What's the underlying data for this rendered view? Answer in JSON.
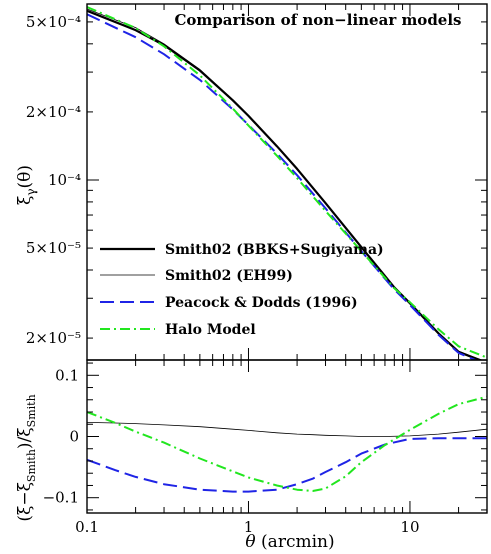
{
  "chart_data": [
    {
      "type": "line",
      "title": "Comparison of non−linear models",
      "ylabel_main": "ξ",
      "ylabel_sub": "γ",
      "ylabel_arg": "(θ)",
      "yscale": "log",
      "xscale": "log",
      "xlim": [
        0.1,
        30
      ],
      "ylim": [
        1.6e-05,
        0.0006
      ],
      "yticks": [
        {
          "value": 0.0005,
          "label": "5×10⁻⁴"
        },
        {
          "value": 0.0002,
          "label": "2×10⁻⁴"
        },
        {
          "value": 0.0001,
          "label": "10⁻⁴"
        },
        {
          "value": 5e-05,
          "label": "5×10⁻⁵"
        },
        {
          "value": 2e-05,
          "label": "2×10⁻⁵"
        }
      ],
      "legend_position": "bottom-left",
      "x": [
        0.1,
        0.2,
        0.3,
        0.5,
        0.8,
        1,
        1.5,
        2,
        3,
        5,
        8,
        10,
        15,
        20,
        30
      ],
      "series": [
        {
          "name": "Smith02 (BBKS+Sugiyama)",
          "color": "#000000",
          "style": "solid-thick",
          "values": [
            0.00056,
            0.00046,
            0.000395,
            0.000305,
            0.000225,
            0.000192,
            0.000141,
            0.000112,
            7.9e-05,
            5.05e-05,
            3.35e-05,
            2.85e-05,
            2.1e-05,
            1.74e-05,
            1.55e-05
          ]
        },
        {
          "name": "Smith02 (EH99)",
          "color": "#000000",
          "style": "solid-thin",
          "values": [
            0.00057,
            0.000472,
            0.0004,
            0.000308,
            0.000226,
            0.000192,
            0.000141,
            0.000112,
            7.9e-05,
            5.05e-05,
            3.35e-05,
            2.85e-05,
            2.11e-05,
            1.75e-05,
            1.57e-05
          ]
        },
        {
          "name": "Peacock & Dodds (1996)",
          "color": "#1f24e6",
          "style": "dashed",
          "values": [
            0.00054,
            0.000428,
            0.00036,
            0.000277,
            0.000205,
            0.000175,
            0.000131,
            0.000105,
            7.5e-05,
            4.85e-05,
            3.28e-05,
            2.8e-05,
            2.07e-05,
            1.72e-05,
            1.52e-05
          ]
        },
        {
          "name": "Halo Model",
          "color": "#22e61f",
          "style": "dash-dot",
          "values": [
            0.000582,
            0.00047,
            0.00039,
            0.00029,
            0.000207,
            0.000174,
            0.000128,
            0.000102,
            7.3e-05,
            4.85e-05,
            3.32e-05,
            2.88e-05,
            2.19e-05,
            1.84e-05,
            1.64e-05
          ]
        }
      ]
    },
    {
      "type": "line",
      "ylabel": "(ξ−ξ",
      "ylabel_sub1": "Smith",
      "ylabel_mid": ")/ξ",
      "ylabel_sub2": "Smith",
      "xlabel_symbol": "θ",
      "xlabel_unit": "(arcmin)",
      "xscale": "log",
      "xlim": [
        0.1,
        30
      ],
      "ylim": [
        -0.125,
        0.125
      ],
      "xticks": [
        {
          "value": 0.1,
          "label": "0.1"
        },
        {
          "value": 1,
          "label": "1"
        },
        {
          "value": 10,
          "label": "10"
        }
      ],
      "yticks": [
        {
          "value": 0.1,
          "label": "0.1"
        },
        {
          "value": 0,
          "label": "0"
        },
        {
          "value": -0.1,
          "label": "−0.1"
        }
      ],
      "x": [
        0.1,
        0.15,
        0.2,
        0.3,
        0.5,
        0.8,
        1,
        1.5,
        2,
        2.5,
        3,
        4,
        5,
        7,
        10,
        15,
        20,
        30
      ],
      "series": [
        {
          "name": "Smith02 (EH99)",
          "color": "#000000",
          "style": "solid-thin",
          "values": [
            0.023,
            0.022,
            0.021,
            0.019,
            0.016,
            0.012,
            0.01,
            0.006,
            0.004,
            0.003,
            0.002,
            0.001,
            0.0,
            0.0,
            0.001,
            0.004,
            0.007,
            0.012
          ]
        },
        {
          "name": "Peacock & Dodds (1996)",
          "color": "#1f24e6",
          "style": "dashed",
          "values": [
            -0.038,
            -0.055,
            -0.066,
            -0.078,
            -0.087,
            -0.09,
            -0.09,
            -0.087,
            -0.078,
            -0.069,
            -0.058,
            -0.042,
            -0.028,
            -0.013,
            -0.004,
            -0.003,
            -0.003,
            -0.003
          ]
        },
        {
          "name": "Halo Model",
          "color": "#22e61f",
          "style": "dash-dot",
          "values": [
            0.04,
            0.022,
            0.008,
            -0.01,
            -0.036,
            -0.057,
            -0.067,
            -0.08,
            -0.087,
            -0.089,
            -0.085,
            -0.065,
            -0.042,
            -0.014,
            0.011,
            0.037,
            0.053,
            0.065
          ]
        }
      ]
    }
  ]
}
